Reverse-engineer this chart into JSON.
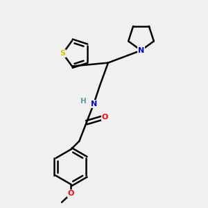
{
  "background_color": "#f0f0f0",
  "atom_colors": {
    "S": "#cccc00",
    "N": "#0000cc",
    "O": "#ff0000",
    "C": "#000000",
    "H": "#5599aa"
  },
  "figsize": [
    3.0,
    3.0
  ],
  "dpi": 100,
  "xlim": [
    0,
    10
  ],
  "ylim": [
    0,
    10
  ]
}
